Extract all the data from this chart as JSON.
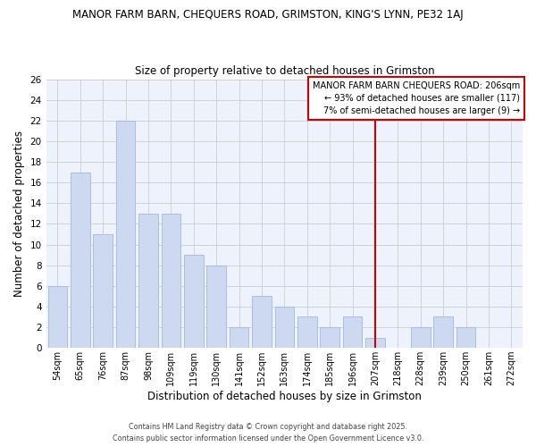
{
  "title": "MANOR FARM BARN, CHEQUERS ROAD, GRIMSTON, KING'S LYNN, PE32 1AJ",
  "subtitle": "Size of property relative to detached houses in Grimston",
  "xlabel": "Distribution of detached houses by size in Grimston",
  "ylabel": "Number of detached properties",
  "bar_labels": [
    "54sqm",
    "65sqm",
    "76sqm",
    "87sqm",
    "98sqm",
    "109sqm",
    "119sqm",
    "130sqm",
    "141sqm",
    "152sqm",
    "163sqm",
    "174sqm",
    "185sqm",
    "196sqm",
    "207sqm",
    "218sqm",
    "228sqm",
    "239sqm",
    "250sqm",
    "261sqm",
    "272sqm"
  ],
  "bar_values": [
    6,
    17,
    11,
    22,
    13,
    13,
    9,
    8,
    2,
    5,
    4,
    3,
    2,
    3,
    1,
    0,
    2,
    3,
    2,
    0,
    0
  ],
  "bar_color": "#ccd9f0",
  "bar_edgecolor": "#a0b8e0",
  "grid_color": "#cccccc",
  "background_color": "#ffffff",
  "plot_bg_color": "#edf2fc",
  "vline_x_index": 14,
  "vline_color": "#cc0000",
  "annotation_text": "MANOR FARM BARN CHEQUERS ROAD: 206sqm\n← 93% of detached houses are smaller (117)\n7% of semi-detached houses are larger (9) →",
  "annotation_box_color": "#ffffff",
  "annotation_border_color": "#cc0000",
  "ylim": [
    0,
    26
  ],
  "yticks": [
    0,
    2,
    4,
    6,
    8,
    10,
    12,
    14,
    16,
    18,
    20,
    22,
    24,
    26
  ],
  "footer_line1": "Contains HM Land Registry data © Crown copyright and database right 2025.",
  "footer_line2": "Contains public sector information licensed under the Open Government Licence v3.0."
}
